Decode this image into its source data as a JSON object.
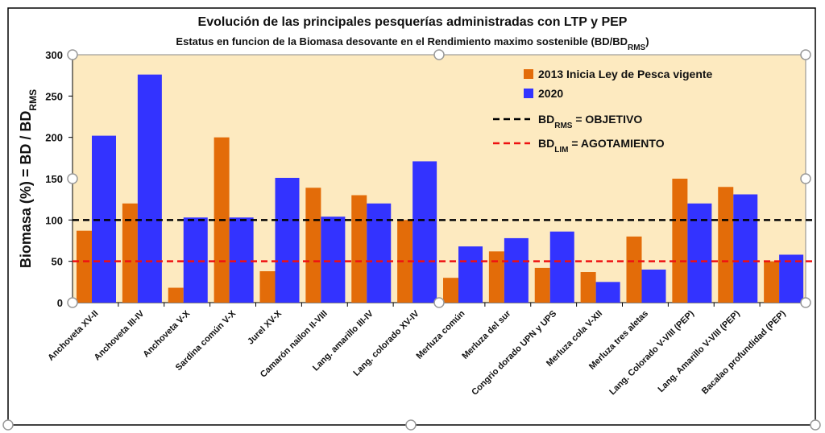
{
  "chart_data": {
    "type": "bar",
    "title": "Evolución de las principales pesquerías administradas con LTP y PEP",
    "subtitle_parts": [
      "Estatus en funcion de la Biomasa desovante en el Rendimiento maximo sostenible (BD/BD",
      "RMS",
      ")"
    ],
    "y_label_parts": [
      "Biomasa (%) =  BD / BD",
      "RMS"
    ],
    "categories": [
      "Anchoveta XV-II",
      "Anchoveta III-IV",
      "Anchoveta V-X",
      "Sardina común V-X",
      "Jurel XV-X",
      "Camarón nailon II-VIII",
      "Lang. amarillo III-IV",
      "Lang. colorado XV-IV",
      "Merluza común",
      "Merluza del sur",
      "Congrio dorado UPN y UPS",
      "Merluza cola V-XII",
      "Merluza tres aletas",
      "Lang. Colorado V-VIII (PEP)",
      "Lang. Amarillo V-VIII (PEP)",
      "Bacalao profundidad (PEP)"
    ],
    "series": [
      {
        "name": "2013 Inicia Ley de Pesca vigente",
        "color": "#e36c09",
        "values": [
          87,
          120,
          18,
          200,
          38,
          139,
          130,
          100,
          30,
          62,
          42,
          37,
          80,
          150,
          140,
          50
        ]
      },
      {
        "name": "2020",
        "color": "#3333ff",
        "values": [
          202,
          276,
          103,
          103,
          151,
          104,
          120,
          171,
          68,
          78,
          86,
          25,
          40,
          120,
          131,
          58
        ]
      }
    ],
    "reference_lines": [
      {
        "value": 100,
        "color": "#000000",
        "label_parts": [
          "BD",
          "RMS",
          " = OBJETIVO"
        ]
      },
      {
        "value": 50,
        "color": "#ee1111",
        "label_parts": [
          "BD",
          "LIM",
          "   = AGOTAMIENTO"
        ]
      }
    ],
    "ylim": [
      0,
      300
    ],
    "yticks": [
      0,
      50,
      100,
      150,
      200,
      250,
      300
    ],
    "plot_background": "#fdeac0"
  }
}
